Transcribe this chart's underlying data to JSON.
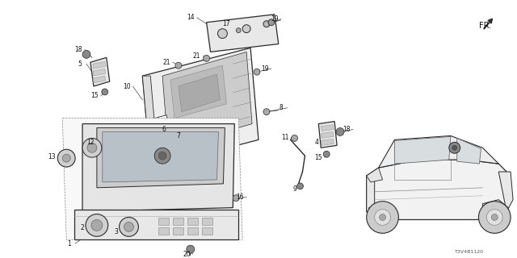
{
  "bg_color": "#ffffff",
  "fig_width": 6.4,
  "fig_height": 3.2,
  "dpi": 100,
  "diagram_code": "T3V4B1120",
  "line_color": "#2a2a2a",
  "light_fill": "#f0f0f0",
  "mid_fill": "#d8d8d8",
  "dark_fill": "#b0b0b0",
  "lw_main": 0.9,
  "lw_thin": 0.5,
  "label_fs": 5.5
}
